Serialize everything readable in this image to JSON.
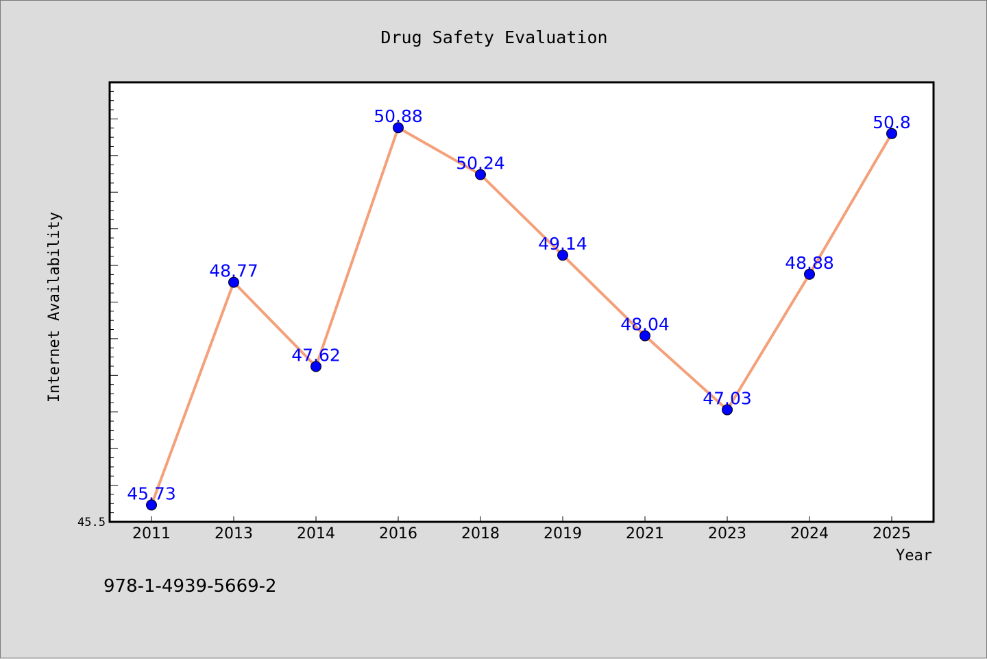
{
  "chart_data": {
    "type": "line",
    "title": "Drug Safety Evaluation",
    "xlabel": "Year",
    "ylabel": "Internet Availability",
    "categories": [
      "2011",
      "2013",
      "2014",
      "2016",
      "2018",
      "2019",
      "2021",
      "2023",
      "2024",
      "2025"
    ],
    "series": [
      {
        "values": [
          45.73,
          48.77,
          47.62,
          50.88,
          50.24,
          49.14,
          48.04,
          47.03,
          48.88,
          50.8
        ]
      }
    ],
    "ylim": [
      45.5,
      51.5
    ],
    "yticks_labeled": [
      "45.5"
    ],
    "grid": false,
    "legend": "none",
    "colors": {
      "line": "#f4a07a",
      "marker": "#0000ff",
      "data_label": "#0000ff",
      "background": "#dcdcdc",
      "plot_bg": "#ffffff"
    }
  },
  "footer": {
    "isbn": "978-1-4939-5669-2"
  }
}
